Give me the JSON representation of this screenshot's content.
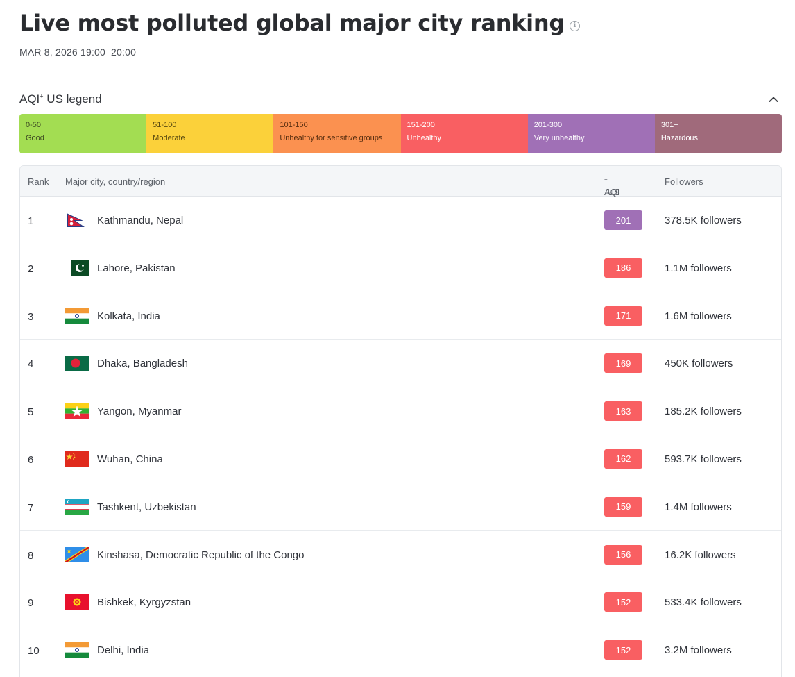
{
  "header": {
    "title": "Live most polluted global major city ranking",
    "timestamp": "MAR 8, 2026 19:00–20:00"
  },
  "legend": {
    "title": "AQI",
    "title_sup": "+",
    "title_suffix": " US legend",
    "segments": [
      {
        "range": "0-50",
        "label": "Good",
        "color": "#a3dd52",
        "text_color": "#3d4a22"
      },
      {
        "range": "51-100",
        "label": "Moderate",
        "color": "#fbd13a",
        "text_color": "#5a4a10"
      },
      {
        "range": "101-150",
        "label": "Unhealthy for sensitive groups",
        "color": "#fb9150",
        "text_color": "#5a2f10"
      },
      {
        "range": "151-200",
        "label": "Unhealthy",
        "color": "#f95f62",
        "text_color": "#ffffff"
      },
      {
        "range": "201-300",
        "label": "Very unhealthy",
        "color": "#a070b6",
        "text_color": "#ffffff"
      },
      {
        "range": "301+",
        "label": "Hazardous",
        "color": "#a06a7b",
        "text_color": "#ffffff"
      }
    ]
  },
  "table": {
    "headers": {
      "rank": "Rank",
      "city": "Major city, country/region",
      "aqi": "AQI",
      "aqi_sup": "+",
      "aqi_suffix": " US",
      "followers": "Followers"
    },
    "rows": [
      {
        "rank": "1",
        "flag": "nepal-flag-icon",
        "city": "Kathmandu, Nepal",
        "aqi": "201",
        "aqi_color": "#a070b6",
        "followers": "378.5K followers"
      },
      {
        "rank": "2",
        "flag": "pakistan-flag-icon",
        "city": "Lahore, Pakistan",
        "aqi": "186",
        "aqi_color": "#f95f62",
        "followers": "1.1M followers"
      },
      {
        "rank": "3",
        "flag": "india-flag-icon",
        "city": "Kolkata, India",
        "aqi": "171",
        "aqi_color": "#f95f62",
        "followers": "1.6M followers"
      },
      {
        "rank": "4",
        "flag": "bangladesh-flag-icon",
        "city": "Dhaka, Bangladesh",
        "aqi": "169",
        "aqi_color": "#f95f62",
        "followers": "450K followers"
      },
      {
        "rank": "5",
        "flag": "myanmar-flag-icon",
        "city": "Yangon, Myanmar",
        "aqi": "163",
        "aqi_color": "#f95f62",
        "followers": "185.2K followers"
      },
      {
        "rank": "6",
        "flag": "china-flag-icon",
        "city": "Wuhan, China",
        "aqi": "162",
        "aqi_color": "#f95f62",
        "followers": "593.7K followers"
      },
      {
        "rank": "7",
        "flag": "uzbekistan-flag-icon",
        "city": "Tashkent, Uzbekistan",
        "aqi": "159",
        "aqi_color": "#f95f62",
        "followers": "1.4M followers"
      },
      {
        "rank": "8",
        "flag": "dr-congo-flag-icon",
        "city": "Kinshasa, Democratic Republic of the Congo",
        "aqi": "156",
        "aqi_color": "#f95f62",
        "followers": "16.2K followers"
      },
      {
        "rank": "9",
        "flag": "kyrgyzstan-flag-icon",
        "city": "Bishkek, Kyrgyzstan",
        "aqi": "152",
        "aqi_color": "#f95f62",
        "followers": "533.4K followers"
      },
      {
        "rank": "10",
        "flag": "india-flag-icon",
        "city": "Delhi, India",
        "aqi": "152",
        "aqi_color": "#f95f62",
        "followers": "3.2M followers"
      }
    ]
  }
}
